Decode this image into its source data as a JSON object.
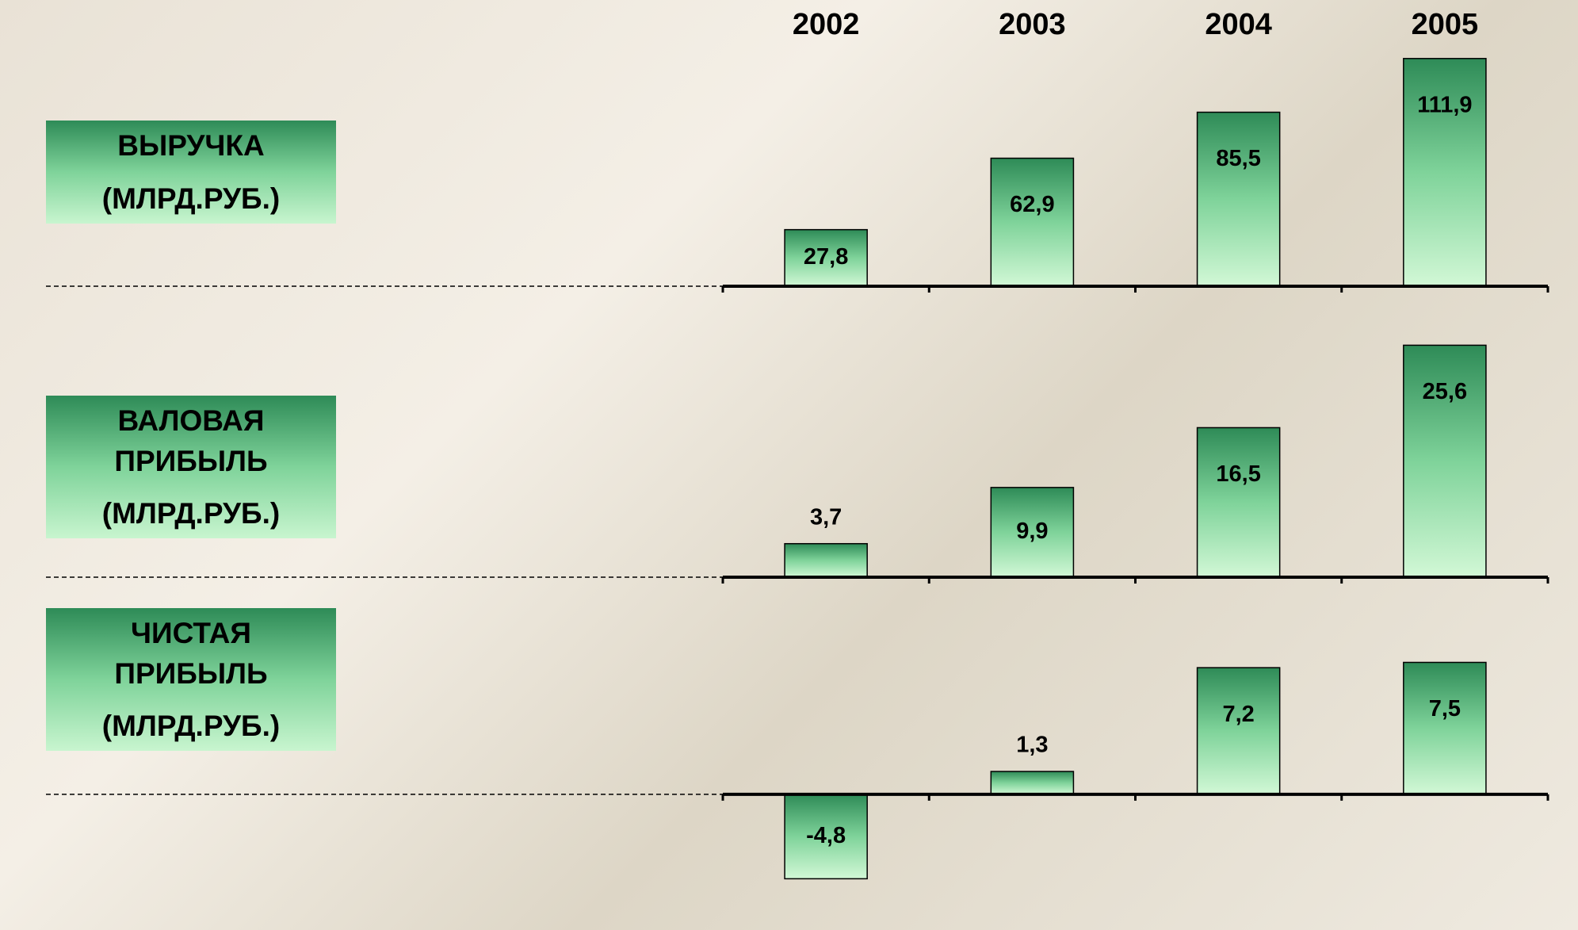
{
  "chart_data": [
    {
      "type": "bar",
      "title": "ВЫРУЧКА",
      "subtitle": "(МЛРД.РУБ.)",
      "categories": [
        "2002",
        "2003",
        "2004",
        "2005"
      ],
      "values": [
        27.8,
        62.9,
        85.5,
        111.9
      ],
      "value_labels": [
        "27,8",
        "62,9",
        "85,5",
        "111,9"
      ],
      "ylim": [
        0,
        120
      ]
    },
    {
      "type": "bar",
      "title": "ВАЛОВАЯ ПРИБЫЛЬ",
      "subtitle": "(МЛРД.РУБ.)",
      "values": [
        3.7,
        9.9,
        16.5,
        25.6
      ],
      "value_labels": [
        "3,7",
        "9,9",
        "16,5",
        "25,6"
      ],
      "ylim": [
        0,
        28
      ]
    },
    {
      "type": "bar",
      "title": "ЧИСТАЯ ПРИБЫЛЬ",
      "subtitle": "(МЛРД.РУБ.)",
      "values": [
        -4.8,
        1.3,
        7.2,
        7.5
      ],
      "value_labels": [
        "-4,8",
        "1,3",
        "7,2",
        "7,5"
      ],
      "ylim": [
        -6,
        10
      ]
    }
  ]
}
